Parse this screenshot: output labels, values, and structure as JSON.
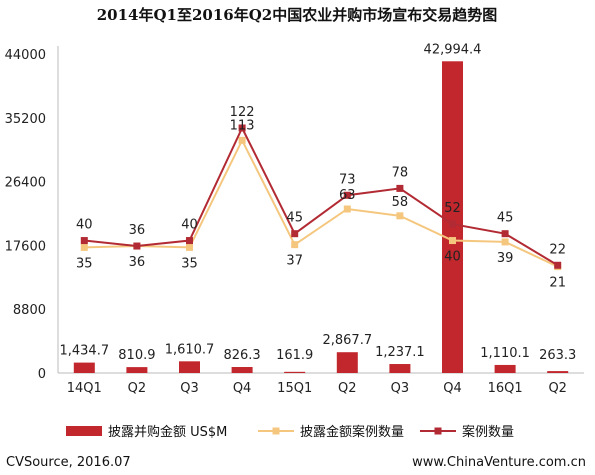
{
  "chart_data": {
    "type": "bar",
    "title": "2014年Q1至2016年Q2中国农业并购市场宣布交易趋势图",
    "categories": [
      "14Q1",
      "Q2",
      "Q3",
      "Q4",
      "15Q1",
      "Q2",
      "Q3",
      "Q4",
      "16Q1",
      "Q2"
    ],
    "y_ticks": [
      "44000",
      "35200",
      "26400",
      "17600",
      "8800",
      "0"
    ],
    "ylim": [
      0,
      44000
    ],
    "series": [
      {
        "name": "披露并购金额 US$M",
        "kind": "bar",
        "color": "#c1272d",
        "values": [
          1434.7,
          810.9,
          1610.7,
          826.3,
          161.9,
          2867.7,
          1237.1,
          42994.4,
          1110.1,
          263.3
        ],
        "labels": [
          "1,434.7",
          "810.9",
          "1,610.7",
          "826.3",
          "161.9",
          "2,867.7",
          "1,237.1",
          "42,994.4",
          "1,110.1",
          "263.3"
        ]
      },
      {
        "name": "披露金额案例数量",
        "kind": "line",
        "marker": "square",
        "color": "#f5c77e",
        "values": [
          35,
          36,
          35,
          113,
          37,
          63,
          58,
          40,
          39,
          21
        ],
        "labels": [
          "35",
          "36",
          "35",
          "113",
          "37",
          "63",
          "58",
          "40",
          "39",
          "21"
        ]
      },
      {
        "name": "案例数量",
        "kind": "line",
        "marker": "square",
        "color": "#b22a33",
        "values": [
          40,
          36,
          40,
          122,
          45,
          73,
          78,
          52,
          45,
          22
        ],
        "labels": [
          "40",
          "36",
          "40",
          "122",
          "45",
          "73",
          "78",
          "52",
          "45",
          "22"
        ]
      }
    ],
    "legend_position": "bottom",
    "grid": false
  },
  "footer": {
    "source": "CVSource, 2016.07",
    "website": "www.ChinaVenture.com.cn"
  }
}
